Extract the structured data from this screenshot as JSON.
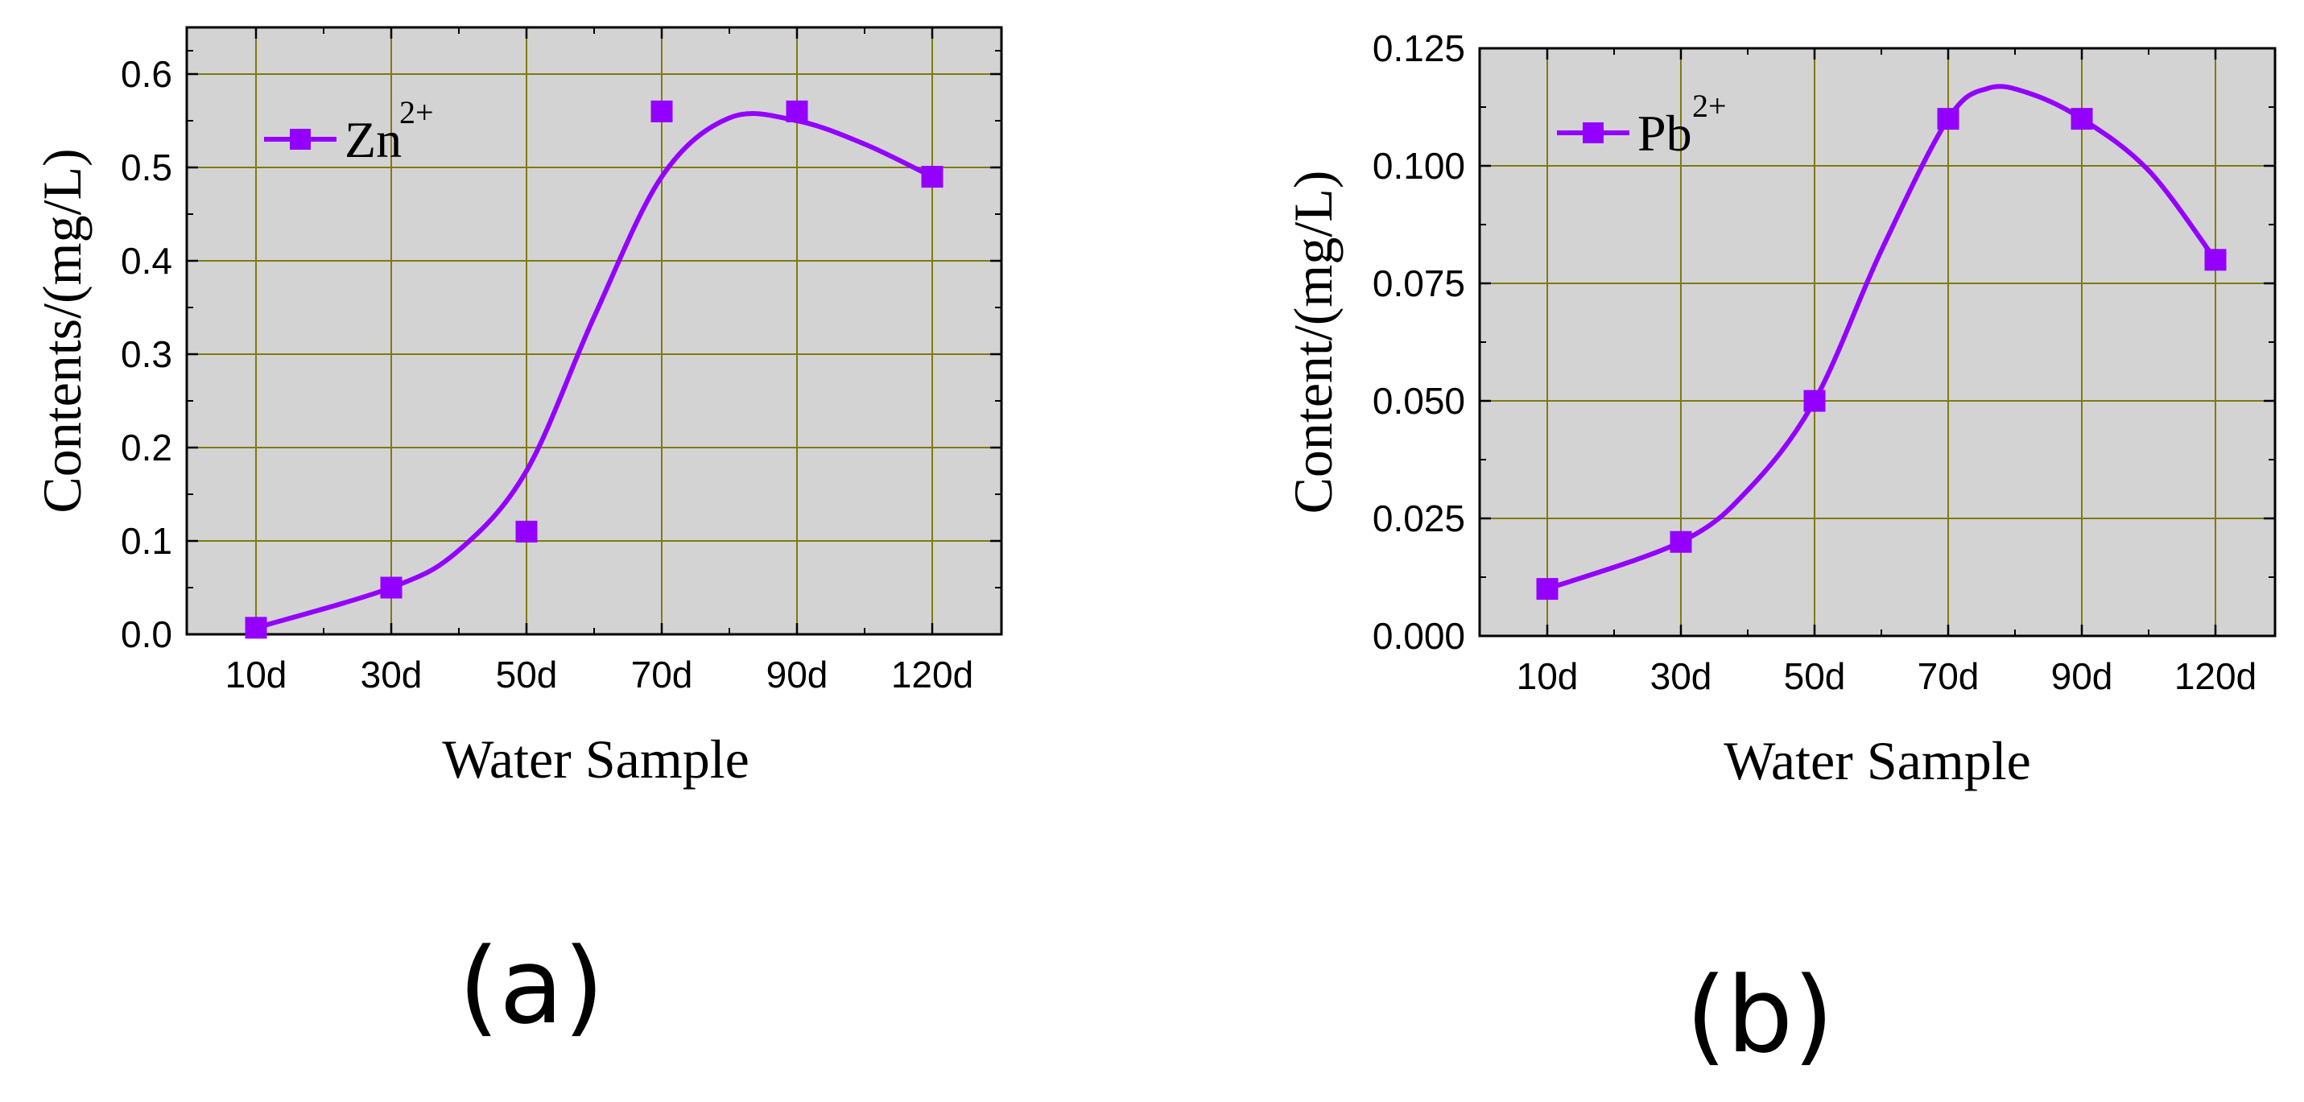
{
  "chart_data": [
    {
      "type": "line",
      "panel_label": "(a)",
      "categories": [
        "10d",
        "30d",
        "50d",
        "70d",
        "90d",
        "120d"
      ],
      "series": [
        {
          "name": "Zn",
          "name_sup": "2+",
          "values": [
            0.007,
            0.05,
            0.11,
            0.56,
            0.56,
            0.49
          ]
        }
      ],
      "fit_curve": {
        "x": [
          0,
          1,
          1.5,
          2,
          2.5,
          3,
          3.5,
          4,
          4.5,
          5
        ],
        "y": [
          0.007,
          0.05,
          0.09,
          0.175,
          0.34,
          0.49,
          0.553,
          0.55,
          0.525,
          0.49
        ]
      },
      "xlabel": "Water Sample",
      "ylabel": "Contents/(mg/L)",
      "ylim": [
        0,
        0.65
      ],
      "yticks": [
        "0.0",
        "0.1",
        "0.2",
        "0.3",
        "0.4",
        "0.5",
        "0.6"
      ],
      "ytick_values": [
        0,
        0.1,
        0.2,
        0.3,
        0.4,
        0.5,
        0.6
      ],
      "grid": true,
      "legend_position": "top-left",
      "plot_background": "#d3d3d3",
      "grid_color": "#7f7a13",
      "series_color": "#9400ff"
    },
    {
      "type": "line",
      "panel_label": "(b)",
      "categories": [
        "10d",
        "30d",
        "50d",
        "70d",
        "90d",
        "120d"
      ],
      "series": [
        {
          "name": "Pb",
          "name_sup": "2+",
          "values": [
            0.01,
            0.02,
            0.05,
            0.11,
            0.11,
            0.08
          ]
        }
      ],
      "fit_curve": {
        "x": [
          0,
          1,
          1.5,
          2,
          2.5,
          3,
          3.3,
          3.6,
          4,
          4.5,
          5
        ],
        "y": [
          0.01,
          0.02,
          0.031,
          0.05,
          0.082,
          0.11,
          0.1165,
          0.1155,
          0.11,
          0.099,
          0.08
        ]
      },
      "xlabel": "Water Sample",
      "ylabel": "Content/(mg/L)",
      "ylim": [
        0,
        0.125
      ],
      "yticks": [
        "0.000",
        "0.025",
        "0.050",
        "0.075",
        "0.100",
        "0.125"
      ],
      "ytick_values": [
        0,
        0.025,
        0.05,
        0.075,
        0.1,
        0.125
      ],
      "grid": true,
      "legend_position": "top-left",
      "plot_background": "#d3d3d3",
      "grid_color": "#7f7a13",
      "series_color": "#9400ff"
    }
  ]
}
